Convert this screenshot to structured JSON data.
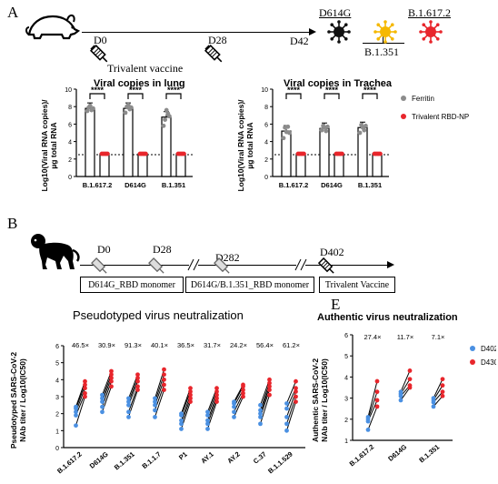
{
  "panels": {
    "a": "A",
    "b": "B",
    "e": "E"
  },
  "timeline_a": {
    "d0": "D0",
    "d28": "D28",
    "d42": "D42",
    "vaccine_label": "Trivalent vaccine",
    "variants": {
      "v1": "D614G",
      "v2": "B.1.617.2",
      "v3": "B.1.351"
    },
    "colors": {
      "v1": "#111111",
      "v2": "#f5b800",
      "v3": "#e8262c"
    }
  },
  "timeline_b": {
    "d0": "D0",
    "d28": "D28",
    "d282": "D282",
    "d402": "D402",
    "box1": "D614G_RBD monomer",
    "box2": "D614G/B.1.351_RBD monomer",
    "box3": "Trivalent Vaccine"
  },
  "lung": {
    "title": "Viral copies in lung",
    "ylabel_line1": "Log10(Viral RNA copies)/",
    "ylabel_line2": "µg total RNA",
    "ticks": [
      "0",
      "2",
      "4",
      "6",
      "8",
      "10"
    ],
    "significance": "****",
    "chart_data": {
      "type": "bar",
      "categories": [
        "B.1.617.2",
        "D614G",
        "B.1.351"
      ],
      "ylim": [
        0,
        10
      ],
      "threshold": 2.5,
      "series": [
        {
          "name": "Ferritin",
          "color": "#8c8c8c",
          "values": [
            7.8,
            7.8,
            6.8
          ],
          "points": [
            [
              7.5,
              7.9,
              8.1,
              7.6,
              7.8
            ],
            [
              7.3,
              8.0,
              8.2,
              7.7,
              7.9
            ],
            [
              5.8,
              6.5,
              7.6,
              7.2,
              6.9
            ]
          ]
        },
        {
          "name": "Trivalent RBD-NP",
          "color": "#e8262c",
          "values": [
            2.6,
            2.6,
            2.6
          ],
          "points": [
            [
              2.6,
              2.6,
              2.6,
              2.6,
              2.6
            ],
            [
              2.6,
              2.6,
              2.6,
              2.6,
              2.6
            ],
            [
              2.6,
              2.6,
              2.6,
              2.6,
              2.6
            ]
          ]
        }
      ]
    }
  },
  "trachea": {
    "title": "Viral copies in Trachea",
    "ylabel_line1": "Log10(Viral RNA copies)/",
    "ylabel_line2": "µg total RNA",
    "ticks": [
      "0",
      "2",
      "4",
      "6",
      "8",
      "10"
    ],
    "significance": "****",
    "legend": [
      "Ferritin",
      "Trivalent RBD-NP"
    ],
    "chart_data": {
      "type": "bar",
      "categories": [
        "B.1.617.2",
        "D614G",
        "B.1.351"
      ],
      "ylim": [
        0,
        10
      ],
      "threshold": 2.5,
      "series": [
        {
          "name": "Ferritin",
          "color": "#8c8c8c",
          "values": [
            5.2,
            5.5,
            5.6
          ],
          "points": [
            [
              4.4,
              5.6,
              5.1,
              5.7,
              5.0
            ],
            [
              5.3,
              5.8,
              5.6,
              5.2,
              5.7
            ],
            [
              5.0,
              5.9,
              5.6,
              5.3,
              5.8
            ]
          ]
        },
        {
          "name": "Trivalent RBD-NP",
          "color": "#e8262c",
          "values": [
            2.6,
            2.6,
            2.6
          ],
          "points": [
            [
              2.6,
              2.6,
              2.6,
              2.6,
              2.6
            ],
            [
              2.6,
              2.6,
              2.6,
              2.6,
              2.6
            ],
            [
              2.6,
              2.6,
              2.6,
              2.6,
              2.6
            ]
          ]
        }
      ]
    }
  },
  "pseudo": {
    "title": "Pseudotyped virus neutralization",
    "ylabel_line1": "Pseudotyped SARS-CoV-2",
    "ylabel_line2": "NAb titer / Log10(IC50)",
    "ticks": [
      "0",
      "1",
      "2",
      "3",
      "4",
      "5",
      "6"
    ],
    "folds": [
      "46.5×",
      "30.9×",
      "91.3×",
      "40.1×",
      "36.5×",
      "31.7×",
      "24.2×",
      "56.4×",
      "61.2×"
    ],
    "chart_data": {
      "type": "scatter",
      "categories": [
        "B.1.617.2",
        "D614G",
        "B.1.351",
        "B.1.1.7",
        "P1",
        "AY.1",
        "AY.2",
        "C.37",
        "B.1.1.529"
      ],
      "ylim": [
        0,
        6
      ],
      "series": [
        {
          "name": "D402",
          "color": "#4a90e2",
          "values": [
            [
              1.3,
              1.9,
              2.1,
              2.3,
              2.4
            ],
            [
              2.1,
              2.4,
              2.7,
              2.9,
              3.1
            ],
            [
              1.8,
              2.1,
              2.5,
              2.7,
              2.9
            ],
            [
              1.8,
              2.2,
              2.5,
              2.7,
              2.9
            ],
            [
              1.1,
              1.4,
              1.6,
              1.9,
              2.0
            ],
            [
              1.1,
              1.4,
              1.6,
              1.9,
              2.1
            ],
            [
              1.8,
              2.1,
              2.4,
              2.6,
              2.7
            ],
            [
              1.4,
              1.8,
              2.0,
              2.2,
              2.5
            ],
            [
              1.0,
              1.4,
              1.8,
              2.3,
              2.6
            ]
          ]
        },
        {
          "name": "D430",
          "color": "#e8262c",
          "values": [
            [
              3.0,
              3.2,
              3.5,
              3.7,
              3.9
            ],
            [
              3.6,
              3.9,
              4.1,
              4.3,
              4.5
            ],
            [
              3.4,
              3.6,
              3.9,
              4.1,
              4.3
            ],
            [
              3.4,
              3.7,
              4.0,
              4.3,
              4.6
            ],
            [
              2.7,
              2.9,
              3.1,
              3.3,
              3.5
            ],
            [
              2.7,
              2.9,
              3.1,
              3.3,
              3.5
            ],
            [
              3.0,
              3.2,
              3.4,
              3.6,
              3.7
            ],
            [
              3.1,
              3.4,
              3.6,
              3.8,
              4.0
            ],
            [
              2.7,
              3.0,
              3.3,
              3.5,
              3.9
            ]
          ]
        }
      ]
    }
  },
  "authentic": {
    "title": "Authentic virus neutralization",
    "ylabel_line1": "Authentic SARS-CoV-2",
    "ylabel_line2": "NAb titer / Log10(IC50)",
    "ticks": [
      "1",
      "2",
      "3",
      "4",
      "5",
      "6"
    ],
    "folds": [
      "27.4×",
      "11.7×",
      "7.1×"
    ],
    "legend": [
      "D402",
      "D430"
    ],
    "chart_data": {
      "type": "scatter",
      "categories": [
        "B.1.617.2",
        "D614G",
        "B.1.351"
      ],
      "ylim": [
        1,
        6
      ],
      "series": [
        {
          "name": "D402",
          "color": "#4a90e2",
          "values": [
            [
              1.5,
              1.9,
              2.0,
              2.1
            ],
            [
              2.9,
              3.1,
              3.2,
              3.3
            ],
            [
              2.6,
              2.8,
              2.9,
              3.0
            ]
          ]
        },
        {
          "name": "D430",
          "color": "#e8262c",
          "values": [
            [
              2.6,
              2.9,
              3.3,
              3.8
            ],
            [
              3.5,
              3.6,
              3.9,
              4.3
            ],
            [
              3.1,
              3.3,
              3.6,
              3.9
            ]
          ]
        }
      ]
    }
  }
}
